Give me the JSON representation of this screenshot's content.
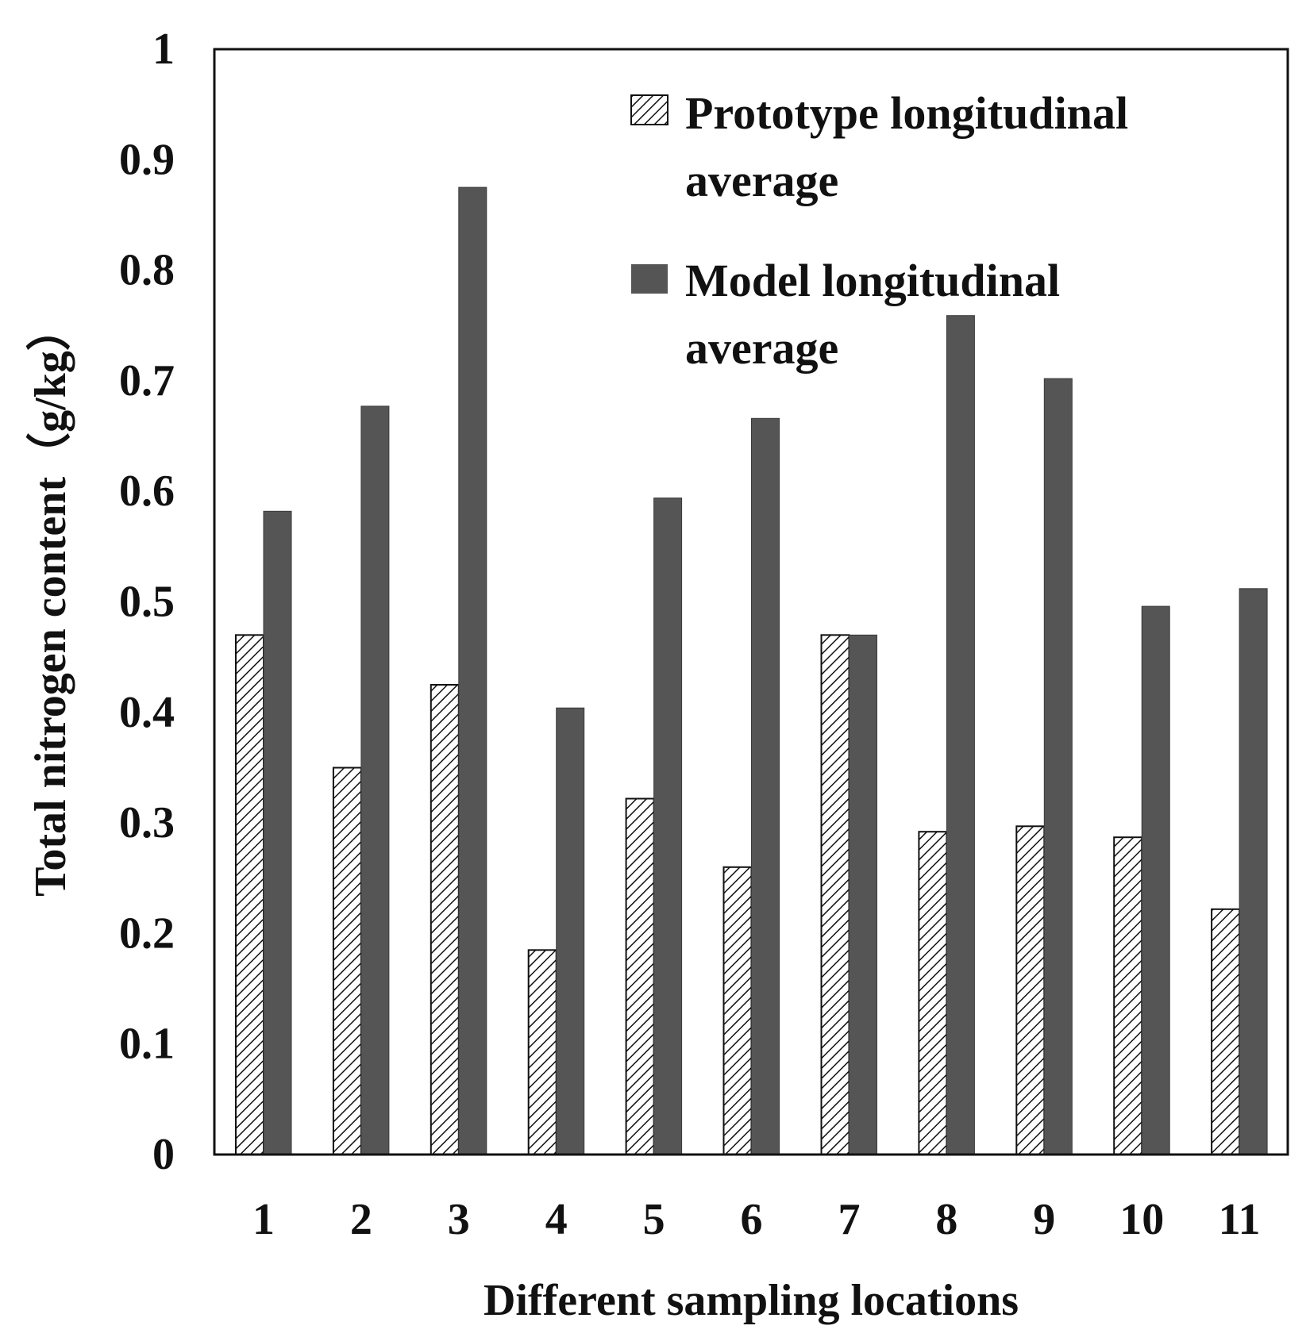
{
  "chart_data": {
    "type": "bar",
    "title": "",
    "xlabel": "Different sampling locations",
    "ylabel": "Total nitrogen content（g/kg）",
    "ylim": [
      0,
      1
    ],
    "yticks": [
      "0",
      "0.1",
      "0.2",
      "0.3",
      "0.4",
      "0.5",
      "0.6",
      "0.7",
      "0.8",
      "0.9",
      "1"
    ],
    "grid": false,
    "legend_position": "top-right",
    "categories": [
      "1",
      "2",
      "3",
      "4",
      "5",
      "6",
      "7",
      "8",
      "9",
      "10",
      "11"
    ],
    "series": [
      {
        "name": "Prototype longitudinal average",
        "legend_lines": [
          "Prototype longitudinal",
          "average"
        ],
        "pattern": "diagonal-hatch",
        "values": [
          0.47,
          0.35,
          0.425,
          0.185,
          0.322,
          0.26,
          0.47,
          0.292,
          0.297,
          0.287,
          0.222
        ]
      },
      {
        "name": "Model longitudinal average",
        "legend_lines": [
          "Model longitudinal",
          "average"
        ],
        "color": "#555555",
        "values": [
          0.582,
          0.677,
          0.875,
          0.404,
          0.594,
          0.666,
          0.47,
          0.759,
          0.702,
          0.496,
          0.512
        ]
      }
    ]
  }
}
